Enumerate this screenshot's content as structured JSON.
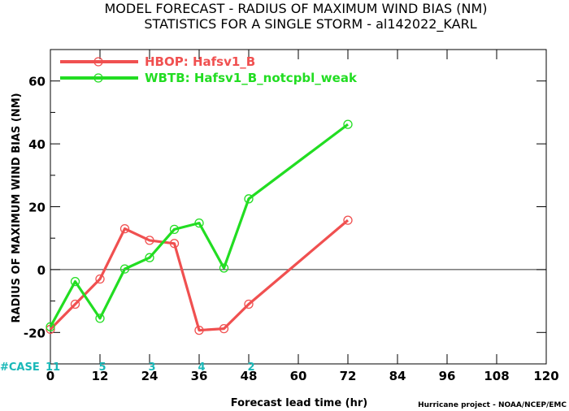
{
  "chart_data": {
    "type": "line",
    "title_line1": "MODEL FORECAST - RADIUS OF MAXIMUM WIND BIAS (NM)",
    "title_line2": "STATISTICS FOR A SINGLE STORM - al142022_KARL",
    "xlabel": "Forecast lead time (hr)",
    "ylabel": "RADIUS OF MAXIMUM WIND BIAS (NM)",
    "xlim": [
      0,
      120
    ],
    "ylim": [
      -30,
      70
    ],
    "x_ticks": [
      0,
      12,
      24,
      36,
      48,
      60,
      72,
      84,
      96,
      108,
      120
    ],
    "y_ticks": [
      -20,
      0,
      20,
      40,
      60
    ],
    "zero_line": true,
    "legend_position": "top-left",
    "case_label": "#CASE",
    "cases": [
      {
        "x": 0,
        "count": 11
      },
      {
        "x": 12,
        "count": 5
      },
      {
        "x": 24,
        "count": 3
      },
      {
        "x": 36,
        "count": 4
      },
      {
        "x": 48,
        "count": 2
      }
    ],
    "credit": "Hurricane project - NOAA/NCEP/EMC",
    "series": [
      {
        "name": "HBOP: Hafsv1_B",
        "color": "#f05050",
        "points": [
          [
            0,
            -19
          ],
          [
            6,
            -11
          ],
          [
            12,
            -3
          ],
          [
            18,
            13
          ],
          [
            24,
            9.3
          ],
          [
            30,
            8.3
          ],
          [
            36,
            -19.3
          ],
          [
            42,
            -18.8
          ],
          [
            48,
            -11
          ],
          [
            72,
            15.7
          ]
        ]
      },
      {
        "name": "WBTB: Hafsv1_B_notcpbl_weak",
        "color": "#22dd22",
        "points": [
          [
            0,
            -18.2
          ],
          [
            6,
            -3.8
          ],
          [
            12,
            -15.5
          ],
          [
            18,
            0.2
          ],
          [
            24,
            3.8
          ],
          [
            30,
            12.8
          ],
          [
            36,
            14.8
          ],
          [
            42,
            0.5
          ],
          [
            48,
            22.5
          ],
          [
            72,
            46.2
          ]
        ]
      }
    ]
  }
}
